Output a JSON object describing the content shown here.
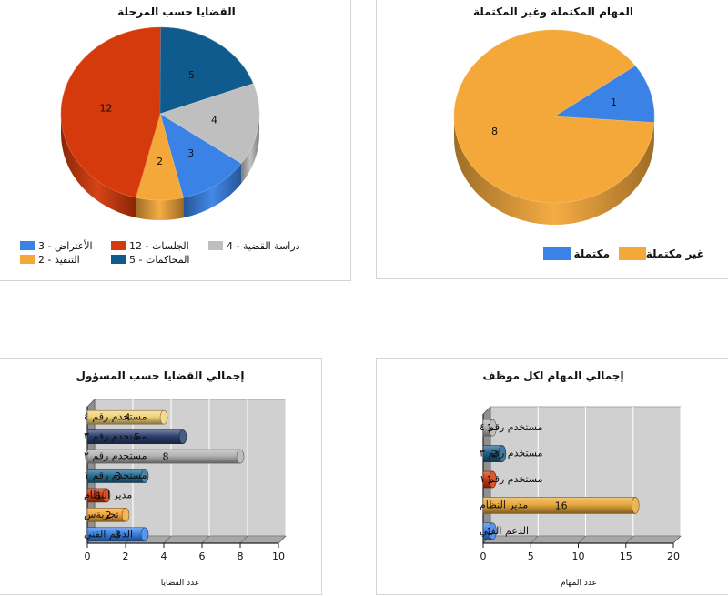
{
  "chart_data": [
    {
      "type": "pie",
      "title": "القضايا حسب المرحلة",
      "slices": [
        {
          "label": "الأعتراض",
          "value": 3,
          "color": "#3a82e6"
        },
        {
          "label": "الجلسات",
          "value": 12,
          "color": "#d43a0b"
        },
        {
          "label": "دراسة القضية",
          "value": 4,
          "color": "#bfbfbf"
        },
        {
          "label": "التنفيذ",
          "value": 2,
          "color": "#f4a83a"
        },
        {
          "label": "المحاكمات",
          "value": 5,
          "color": "#0f5b8e"
        }
      ],
      "legend_position": "bottom"
    },
    {
      "type": "pie",
      "title": "المهام المكتملة وغير المكتملة",
      "slices": [
        {
          "label": "مكتملة",
          "value": 1,
          "color": "#3a82e6"
        },
        {
          "label": "غير مكتملة",
          "value": 8,
          "color": "#f4a83a"
        }
      ],
      "legend_position": "bottom"
    },
    {
      "type": "bar",
      "orientation": "horizontal",
      "title": "إجمالي القضايا حسب المسؤول",
      "xlabel": "عدد القضايا",
      "xlim": [
        0,
        10
      ],
      "ticks": [
        0,
        2,
        4,
        6,
        8,
        10
      ],
      "categories": [
        "مستخدم رقم ٤",
        "مستخدم رقم ٣",
        "مستخدم رقم ٢",
        "مستخدم رقم ١",
        "مدير النظام",
        "تجربةس",
        "الدعم الفني"
      ],
      "values": [
        4,
        5,
        8,
        3,
        1,
        2,
        3
      ],
      "colors": [
        "#f2d27a",
        "#2b3f6e",
        "#b3b3b3",
        "#2a6f99",
        "#d43a0b",
        "#f4a83a",
        "#3a82e6"
      ],
      "grid": true
    },
    {
      "type": "bar",
      "orientation": "horizontal",
      "title": "إجمالي المهام لكل موظف",
      "xlabel": "عدد المهام",
      "xlim": [
        0,
        20
      ],
      "ticks": [
        0,
        5,
        10,
        15,
        20
      ],
      "categories": [
        "مستخدم رقم ٤",
        "مستخدم رقم ٣",
        "مستخدم رقم ١",
        "مدير النظام",
        "الدعم الفني"
      ],
      "values": [
        1,
        2,
        1,
        16,
        1
      ],
      "colors": [
        "#b3b3b3",
        "#1f5f8b",
        "#d43a0b",
        "#e8a83a",
        "#3a82e6"
      ],
      "grid": true
    }
  ]
}
